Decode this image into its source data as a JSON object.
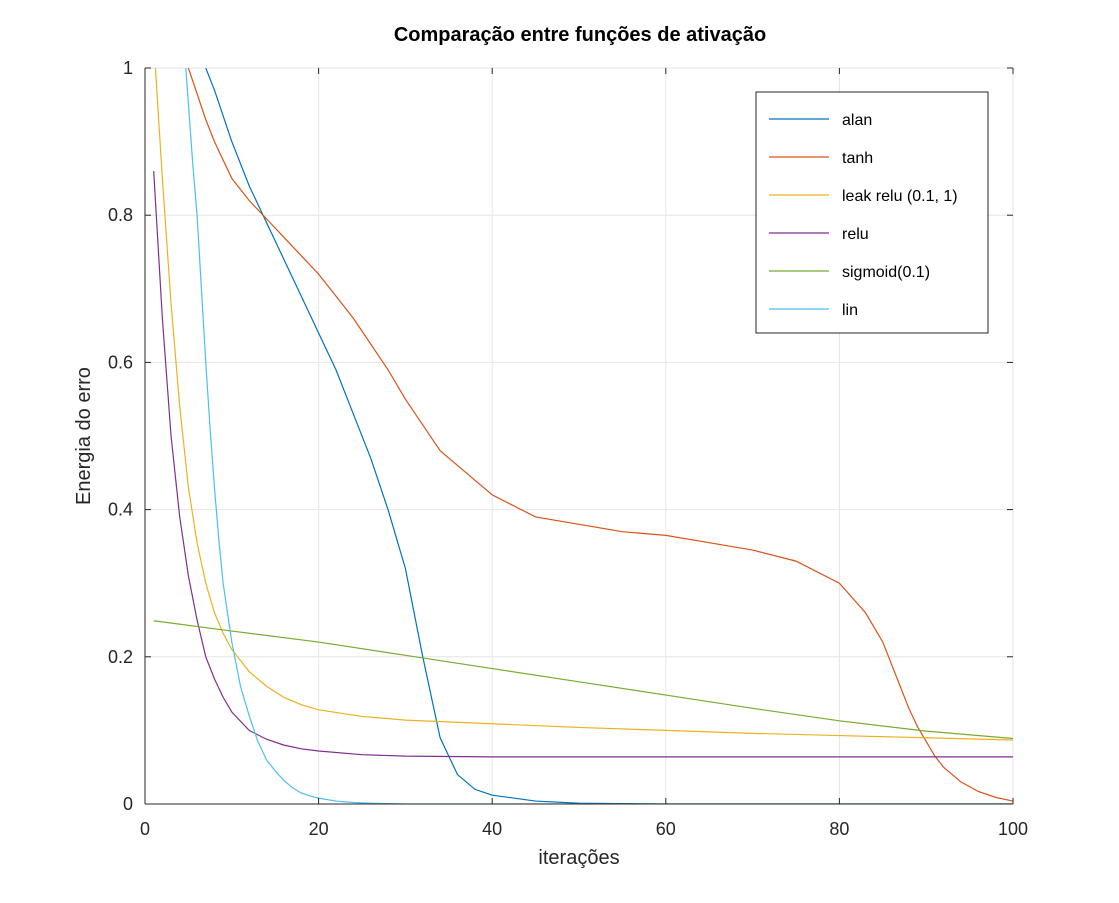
{
  "chart_data": {
    "type": "line",
    "title": "Comparação entre funções de ativação",
    "xlabel": "iterações",
    "ylabel": "Energia do erro",
    "xlim": [
      0,
      100
    ],
    "ylim": [
      0,
      1
    ],
    "xticks": [
      0,
      20,
      40,
      60,
      80,
      100
    ],
    "yticks": [
      0,
      0.2,
      0.4,
      0.6,
      0.8,
      1
    ],
    "xtick_labels": [
      "0",
      "20",
      "40",
      "60",
      "80",
      "100"
    ],
    "ytick_labels": [
      "0",
      "0.2",
      "0.4",
      "0.6",
      "0.8",
      "1"
    ],
    "grid": true,
    "legend_position": "top-right",
    "series": [
      {
        "name": "alan",
        "color": "#0072bd",
        "x": [
          7,
          8,
          10,
          12,
          14,
          16,
          18,
          20,
          22,
          24,
          26,
          28,
          30,
          32,
          34,
          36,
          38,
          40,
          45,
          50,
          60,
          80,
          100
        ],
        "y": [
          1.0,
          0.97,
          0.9,
          0.84,
          0.79,
          0.74,
          0.69,
          0.64,
          0.59,
          0.53,
          0.47,
          0.4,
          0.32,
          0.2,
          0.09,
          0.04,
          0.02,
          0.012,
          0.004,
          0.001,
          0.0,
          0.0,
          0.0
        ]
      },
      {
        "name": "tanh",
        "color": "#d95319",
        "x": [
          5,
          7,
          8,
          10,
          12,
          14,
          16,
          18,
          20,
          22,
          24,
          26,
          28,
          30,
          32,
          34,
          36,
          38,
          40,
          45,
          50,
          55,
          60,
          65,
          70,
          75,
          80,
          83,
          85,
          86,
          87,
          88,
          89,
          90,
          91,
          92,
          94,
          96,
          98,
          100
        ],
        "y": [
          1.0,
          0.93,
          0.9,
          0.85,
          0.82,
          0.795,
          0.77,
          0.745,
          0.72,
          0.69,
          0.66,
          0.625,
          0.59,
          0.55,
          0.515,
          0.48,
          0.46,
          0.44,
          0.42,
          0.39,
          0.38,
          0.37,
          0.365,
          0.355,
          0.345,
          0.33,
          0.3,
          0.26,
          0.22,
          0.19,
          0.16,
          0.13,
          0.105,
          0.085,
          0.065,
          0.05,
          0.03,
          0.017,
          0.009,
          0.004
        ]
      },
      {
        "name": "leak relu (0.1, 1)",
        "color": "#edb120",
        "x": [
          1.2,
          2,
          3,
          4,
          5,
          6,
          7,
          8,
          9,
          10,
          12,
          14,
          16,
          18,
          20,
          25,
          30,
          40,
          50,
          60,
          70,
          80,
          90,
          100
        ],
        "y": [
          1.0,
          0.85,
          0.68,
          0.54,
          0.43,
          0.355,
          0.3,
          0.26,
          0.232,
          0.21,
          0.18,
          0.16,
          0.145,
          0.135,
          0.128,
          0.119,
          0.114,
          0.109,
          0.104,
          0.1,
          0.096,
          0.093,
          0.09,
          0.087
        ]
      },
      {
        "name": "relu",
        "color": "#7e2f8e",
        "x": [
          1,
          2,
          3,
          4,
          5,
          6,
          7,
          8,
          9,
          10,
          12,
          14,
          16,
          18,
          20,
          25,
          30,
          40,
          60,
          80,
          100
        ],
        "y": [
          0.86,
          0.66,
          0.5,
          0.39,
          0.31,
          0.25,
          0.2,
          0.17,
          0.145,
          0.125,
          0.1,
          0.088,
          0.08,
          0.075,
          0.072,
          0.067,
          0.065,
          0.064,
          0.064,
          0.064,
          0.064
        ]
      },
      {
        "name": "sigmoid(0.1)",
        "color": "#77ac30",
        "x": [
          1,
          10,
          20,
          30,
          40,
          50,
          60,
          70,
          80,
          90,
          100
        ],
        "y": [
          0.249,
          0.235,
          0.22,
          0.202,
          0.184,
          0.166,
          0.148,
          0.13,
          0.113,
          0.099,
          0.089
        ]
      },
      {
        "name": "lin",
        "color": "#4dbeee",
        "x": [
          4.7,
          5.5,
          6,
          6.5,
          7,
          7.5,
          8,
          8.5,
          9,
          10,
          11,
          12,
          13,
          14,
          15,
          16,
          17,
          18,
          19,
          20,
          22,
          24,
          26,
          30,
          40,
          100
        ],
        "y": [
          1.0,
          0.87,
          0.8,
          0.7,
          0.6,
          0.51,
          0.43,
          0.36,
          0.3,
          0.22,
          0.16,
          0.12,
          0.085,
          0.06,
          0.045,
          0.032,
          0.022,
          0.015,
          0.011,
          0.008,
          0.004,
          0.002,
          0.001,
          0.0,
          0.0,
          0.0
        ]
      }
    ]
  }
}
